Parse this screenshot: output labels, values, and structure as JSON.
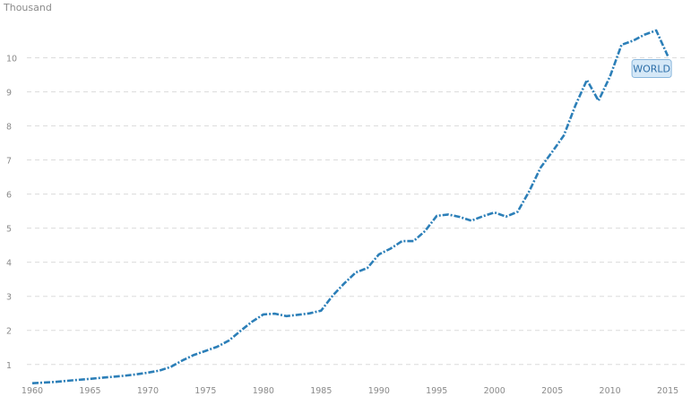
{
  "chart_data": {
    "type": "line",
    "unit_label": "Thousand",
    "x": [
      1960,
      1961,
      1962,
      1963,
      1964,
      1965,
      1966,
      1967,
      1968,
      1969,
      1970,
      1971,
      1972,
      1973,
      1974,
      1975,
      1976,
      1977,
      1978,
      1979,
      1980,
      1981,
      1982,
      1983,
      1984,
      1985,
      1986,
      1987,
      1988,
      1989,
      1990,
      1991,
      1992,
      1993,
      1994,
      1995,
      1996,
      1997,
      1998,
      1999,
      2000,
      2001,
      2002,
      2003,
      2004,
      2005,
      2006,
      2007,
      2008,
      2009,
      2010,
      2011,
      2012,
      2013,
      2014,
      2015
    ],
    "series": [
      {
        "name": "WORLD",
        "values": [
          0.45,
          0.47,
          0.49,
          0.52,
          0.55,
          0.58,
          0.61,
          0.64,
          0.67,
          0.71,
          0.76,
          0.82,
          0.93,
          1.12,
          1.28,
          1.4,
          1.52,
          1.7,
          1.98,
          2.25,
          2.47,
          2.49,
          2.42,
          2.46,
          2.5,
          2.58,
          3.02,
          3.38,
          3.7,
          3.83,
          4.23,
          4.4,
          4.62,
          4.62,
          4.92,
          5.36,
          5.4,
          5.33,
          5.22,
          5.35,
          5.46,
          5.34,
          5.48,
          6.08,
          6.78,
          7.24,
          7.72,
          8.6,
          9.35,
          8.74,
          9.45,
          10.38,
          10.5,
          10.68,
          10.8,
          10.05
        ],
        "color": "#2c7fb8"
      }
    ],
    "y_ticks": [
      "1",
      "2",
      "3",
      "4",
      "5",
      "6",
      "7",
      "8",
      "9",
      "10"
    ],
    "x_ticks": [
      "1960",
      "1965",
      "1970",
      "1975",
      "1980",
      "1985",
      "1990",
      "1995",
      "2000",
      "2005",
      "2010",
      "2015"
    ],
    "xlim": [
      1960,
      2016
    ],
    "ylim": [
      0.6,
      11.3
    ],
    "grid": true,
    "legend_label": "WORLD"
  }
}
